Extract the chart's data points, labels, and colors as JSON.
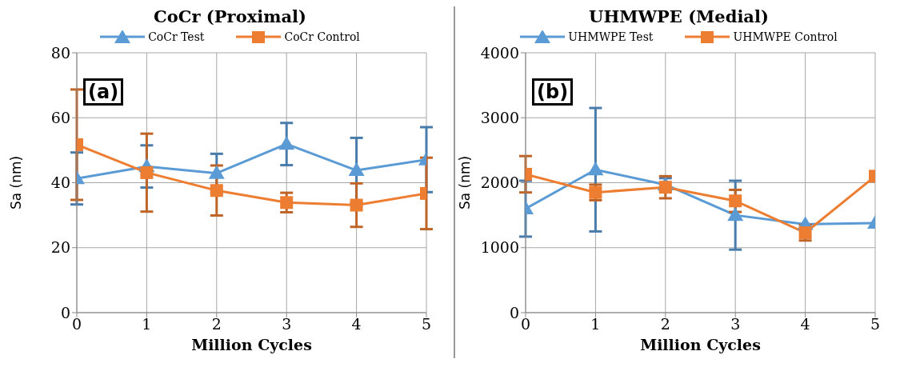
{
  "chart_data": [
    {
      "type": "line",
      "title": "CoCr (Proximal)",
      "xlabel": "Million Cycles",
      "ylabel": "Sa (nm)",
      "x": [
        0,
        1,
        2,
        3,
        4,
        5
      ],
      "xlim": [
        0,
        5
      ],
      "xticks": [
        0,
        1,
        2,
        3,
        4,
        5
      ],
      "ylim": [
        0,
        80
      ],
      "yticks": [
        0,
        20,
        40,
        60,
        80
      ],
      "grid": true,
      "legend": "top",
      "annotations": [
        "(a)"
      ],
      "series": [
        {
          "name": "CoCr Test",
          "color": "#5b9bd5",
          "marker": "triangle",
          "values": [
            41.3,
            45,
            42.9,
            51.9,
            43.8,
            47.1
          ],
          "errors": [
            8,
            6.5,
            6,
            6.5,
            10,
            10
          ]
        },
        {
          "name": "CoCr Control",
          "color": "#ed7d31",
          "marker": "square",
          "values": [
            51.7,
            43.1,
            37.6,
            33.9,
            33.1,
            36.7
          ],
          "errors": [
            17,
            12,
            7.7,
            3,
            6.7,
            11
          ]
        }
      ]
    },
    {
      "type": "line",
      "title": "UHMWPE (Medial)",
      "xlabel": "Million Cycles",
      "ylabel": "Sa (nm)",
      "x": [
        0,
        1,
        2,
        3,
        4,
        5
      ],
      "xlim": [
        0,
        5
      ],
      "xticks": [
        0,
        1,
        2,
        3,
        4,
        5
      ],
      "ylim": [
        0,
        4000
      ],
      "yticks": [
        0,
        1000,
        2000,
        3000,
        4000
      ],
      "grid": true,
      "legend": "top",
      "annotations": [
        "(b)"
      ],
      "series": [
        {
          "name": "UHMWPE Test",
          "color": "#5b9bd5",
          "marker": "triangle",
          "values": [
            1600,
            2200,
            1970,
            1500,
            1360,
            1380
          ],
          "errors": [
            430,
            950,
            100,
            530,
            null,
            null
          ]
        },
        {
          "name": "UHMWPE Control",
          "color": "#ed7d31",
          "marker": "square",
          "values": [
            2130,
            1850,
            1930,
            1720,
            1230,
            2100
          ],
          "errors": [
            280,
            120,
            170,
            170,
            120,
            null
          ]
        }
      ]
    }
  ]
}
